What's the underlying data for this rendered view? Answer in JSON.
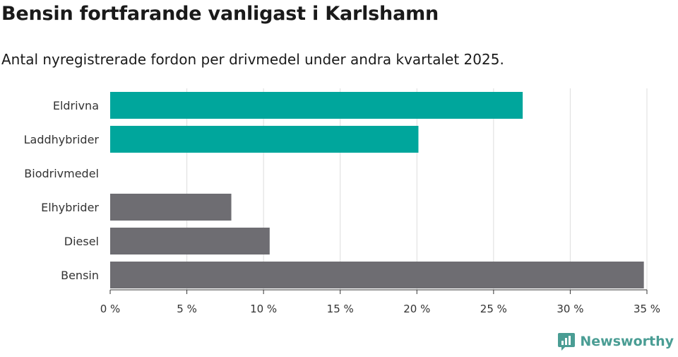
{
  "title": "Bensin fortfarande vanligast i Karlshamn",
  "subtitle": "Antal nyregistrerade fordon per drivmedel under andra kvartalet 2025.",
  "brand": {
    "name": "Newsworthy",
    "color": "#4a9d94",
    "icon": "newsworthy-logo-icon"
  },
  "colors": {
    "highlight": "#00a69c",
    "default": "#6e6d72",
    "grid": "#dddddd",
    "axis": "#333333"
  },
  "chart_data": {
    "type": "bar",
    "orientation": "horizontal",
    "categories": [
      "Eldrivna",
      "Laddhybrider",
      "Biodrivmedel",
      "Elhybrider",
      "Diesel",
      "Bensin"
    ],
    "values": [
      26.9,
      20.1,
      0,
      7.9,
      10.4,
      34.8
    ],
    "highlighted": [
      true,
      true,
      false,
      false,
      false,
      false
    ],
    "xlim": [
      0,
      35
    ],
    "xticks": [
      0,
      5,
      10,
      15,
      20,
      25,
      30,
      35
    ],
    "xtick_labels": [
      "0 %",
      "5 %",
      "10 %",
      "15 %",
      "20 %",
      "25 %",
      "30 %",
      "35 %"
    ],
    "grid": true,
    "xlabel": "",
    "ylabel": ""
  }
}
